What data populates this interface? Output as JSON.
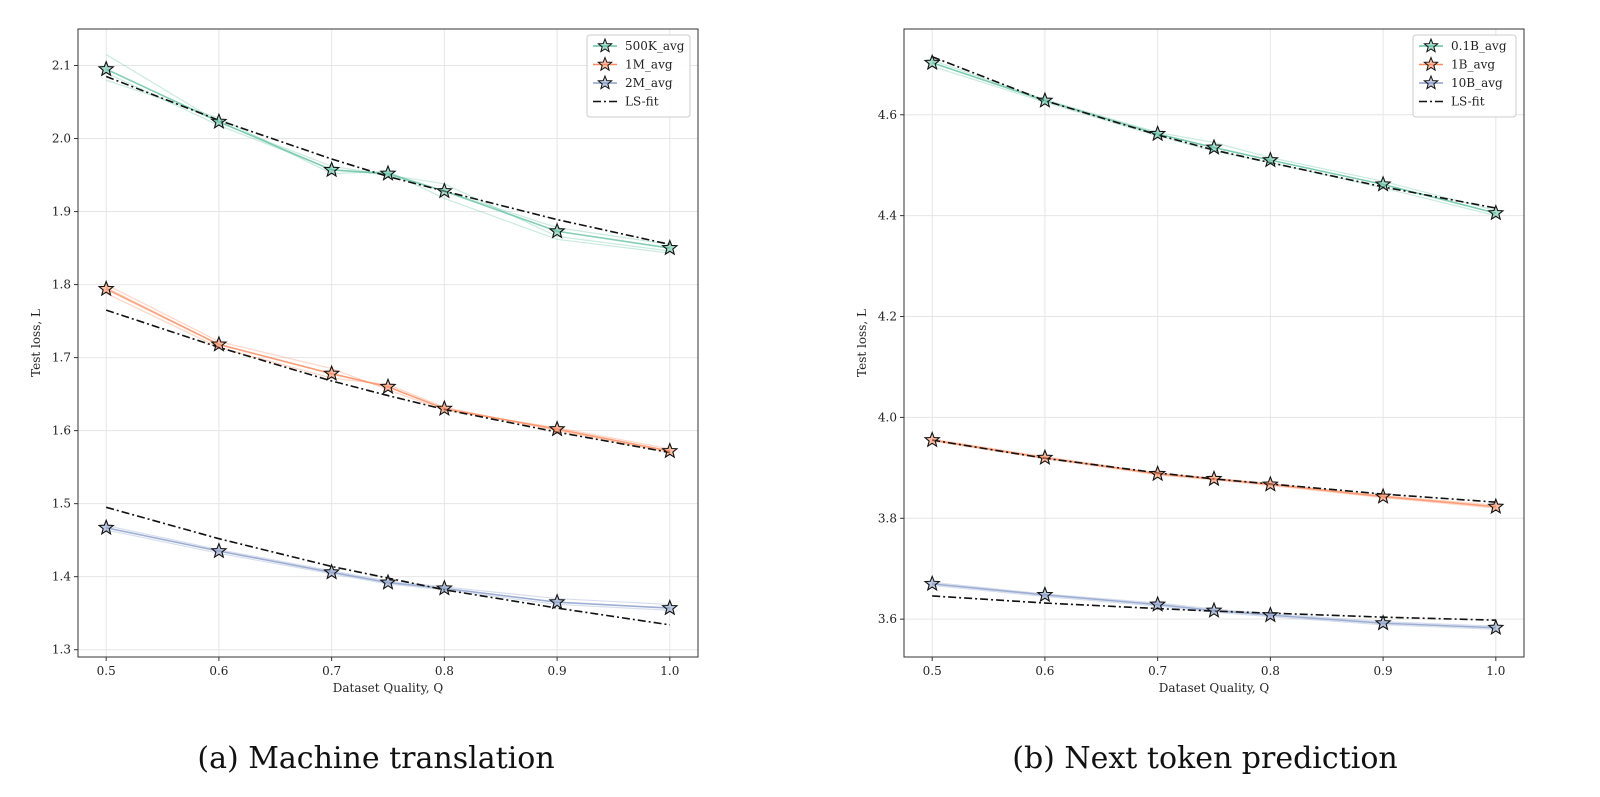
{
  "chart_data": [
    {
      "type": "line",
      "title": "",
      "caption": "(a) Machine translation",
      "xlabel": "Dataset Quality, Q",
      "ylabel": "Test loss, L",
      "xlim": [
        0.475,
        1.025
      ],
      "ylim": [
        1.29,
        2.15
      ],
      "xticks": [
        0.5,
        0.6,
        0.7,
        0.8,
        0.9,
        1.0
      ],
      "xtick_labels": [
        "0.5",
        "0.6",
        "0.7",
        "0.8",
        "0.9",
        "1.0"
      ],
      "yticks": [
        1.3,
        1.4,
        1.5,
        1.6,
        1.7,
        1.8,
        1.9,
        2.0,
        2.1
      ],
      "ytick_labels": [
        "1.3",
        "1.4",
        "1.5",
        "1.6",
        "1.7",
        "1.8",
        "1.9",
        "2.0",
        "2.1"
      ],
      "grid": true,
      "legend_position": "top-right",
      "x": [
        0.5,
        0.6,
        0.7,
        0.75,
        0.8,
        0.9,
        1.0
      ],
      "series": [
        {
          "name": "500K_avg",
          "color": "#66c2a5",
          "values": [
            2.095,
            2.023,
            1.957,
            1.952,
            1.928,
            1.873,
            1.85
          ],
          "runs": [
            [
              2.115,
              2.022,
              1.962,
              1.95,
              1.938,
              1.866,
              1.846
            ],
            [
              2.08,
              2.028,
              1.952,
              1.955,
              1.918,
              1.862,
              1.843
            ],
            [
              2.09,
              2.018,
              1.958,
              1.95,
              1.928,
              1.878,
              1.855
            ]
          ],
          "fit": [
            2.085,
            2.025,
            1.972,
            1.948,
            1.928,
            1.889,
            1.855
          ]
        },
        {
          "name": "1M_avg",
          "color": "#fc8d62",
          "values": [
            1.794,
            1.718,
            1.678,
            1.66,
            1.63,
            1.602,
            1.572
          ],
          "runs": [
            [
              1.8,
              1.722,
              1.685,
              1.656,
              1.628,
              1.604,
              1.575
            ],
            [
              1.788,
              1.714,
              1.672,
              1.663,
              1.632,
              1.6,
              1.57
            ],
            [
              1.796,
              1.718,
              1.678,
              1.66,
              1.63,
              1.602,
              1.572
            ]
          ],
          "fit": [
            1.765,
            1.714,
            1.668,
            1.648,
            1.629,
            1.598,
            1.57
          ]
        },
        {
          "name": "2M_avg",
          "color": "#8da0cb",
          "values": [
            1.467,
            1.435,
            1.406,
            1.392,
            1.384,
            1.365,
            1.357
          ],
          "runs": [
            [
              1.47,
              1.437,
              1.408,
              1.394,
              1.386,
              1.37,
              1.362
            ],
            [
              1.464,
              1.432,
              1.404,
              1.39,
              1.382,
              1.362,
              1.354
            ],
            [
              1.467,
              1.435,
              1.406,
              1.392,
              1.384,
              1.365,
              1.357
            ]
          ],
          "fit": [
            1.495,
            1.452,
            1.414,
            1.398,
            1.382,
            1.357,
            1.334
          ]
        }
      ],
      "fit_label": "LS-fit"
    },
    {
      "type": "line",
      "title": "",
      "caption": "(b) Next token prediction",
      "xlabel": "Dataset Quality, Q",
      "ylabel": "Test loss, L",
      "xlim": [
        0.475,
        1.025
      ],
      "ylim": [
        3.525,
        4.77
      ],
      "xticks": [
        0.5,
        0.6,
        0.7,
        0.8,
        0.9,
        1.0
      ],
      "xtick_labels": [
        "0.5",
        "0.6",
        "0.7",
        "0.8",
        "0.9",
        "1.0"
      ],
      "yticks": [
        3.6,
        3.8,
        4.0,
        4.2,
        4.4,
        4.6
      ],
      "ytick_labels": [
        "3.6",
        "3.8",
        "4.0",
        "4.2",
        "4.4",
        "4.6"
      ],
      "grid": true,
      "legend_position": "top-right",
      "x": [
        0.5,
        0.6,
        0.7,
        0.75,
        0.8,
        0.9,
        1.0
      ],
      "series": [
        {
          "name": "0.1B_avg",
          "color": "#66c2a5",
          "values": [
            4.703,
            4.628,
            4.562,
            4.535,
            4.51,
            4.462,
            4.405
          ],
          "runs": [
            [
              4.708,
              4.63,
              4.565,
              4.545,
              4.515,
              4.468,
              4.41
            ],
            [
              4.696,
              4.625,
              4.558,
              4.528,
              4.505,
              4.455,
              4.4
            ],
            [
              4.703,
              4.628,
              4.562,
              4.535,
              4.51,
              4.462,
              4.405
            ]
          ],
          "fit": [
            4.715,
            4.628,
            4.56,
            4.53,
            4.505,
            4.457,
            4.415
          ]
        },
        {
          "name": "1B_avg",
          "color": "#fc8d62",
          "values": [
            3.955,
            3.92,
            3.888,
            3.878,
            3.867,
            3.843,
            3.823
          ],
          "runs": [
            [
              3.957,
              3.922,
              3.89,
              3.88,
              3.869,
              3.845,
              3.826
            ],
            [
              3.953,
              3.918,
              3.886,
              3.876,
              3.865,
              3.841,
              3.82
            ],
            [
              3.955,
              3.92,
              3.888,
              3.878,
              3.867,
              3.843,
              3.823
            ]
          ],
          "fit": [
            3.955,
            3.919,
            3.89,
            3.878,
            3.868,
            3.848,
            3.832
          ]
        },
        {
          "name": "10B_avg",
          "color": "#8da0cb",
          "values": [
            3.67,
            3.648,
            3.629,
            3.617,
            3.608,
            3.592,
            3.583
          ],
          "runs": [
            [
              3.673,
              3.65,
              3.632,
              3.62,
              3.611,
              3.595,
              3.586
            ],
            [
              3.667,
              3.645,
              3.626,
              3.614,
              3.605,
              3.589,
              3.58
            ],
            [
              3.67,
              3.648,
              3.629,
              3.617,
              3.608,
              3.592,
              3.583
            ]
          ],
          "fit": [
            3.646,
            3.632,
            3.621,
            3.616,
            3.612,
            3.604,
            3.598
          ]
        }
      ],
      "fit_label": "LS-fit"
    }
  ]
}
